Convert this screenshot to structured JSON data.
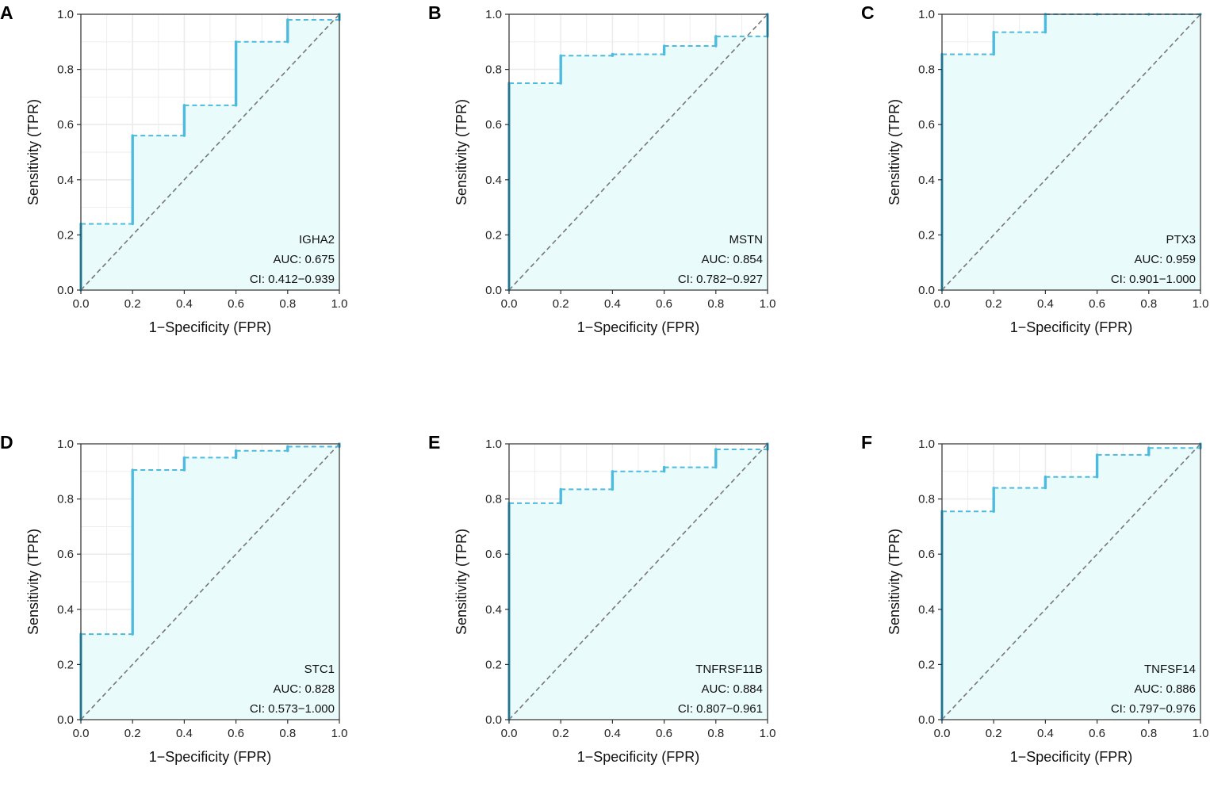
{
  "colors": {
    "roc": "#4dbbdf",
    "fill": "#eafbfb",
    "diag": "#777777",
    "grid": "#ebebeb"
  },
  "chart_data": [
    {
      "letter": "A",
      "type": "line",
      "xlabel": "1−Specificity (FPR)",
      "ylabel": "Sensitivity (TPR)",
      "xlim": [
        0,
        1
      ],
      "ylim": [
        0,
        1
      ],
      "xticks": [
        "0.0",
        "0.2",
        "0.4",
        "0.6",
        "0.8",
        "1.0"
      ],
      "yticks": [
        "0.0",
        "0.2",
        "0.4",
        "0.6",
        "0.8",
        "1.0"
      ],
      "gene": "IGHA2",
      "auc_text": "AUC: 0.675",
      "ci_text": "CI: 0.412−0.939",
      "steps": [
        [
          0,
          0.0,
          0.24
        ],
        [
          0.2,
          0.24,
          0.56
        ],
        [
          0.4,
          0.56,
          0.67
        ],
        [
          0.6,
          0.67,
          0.9
        ],
        [
          0.8,
          0.9,
          0.98
        ],
        [
          1.0,
          0.98,
          1.0
        ]
      ]
    },
    {
      "letter": "B",
      "type": "line",
      "xlabel": "1−Specificity (FPR)",
      "ylabel": "Sensitivity (TPR)",
      "xlim": [
        0,
        1
      ],
      "ylim": [
        0,
        1
      ],
      "xticks": [
        "0.0",
        "0.2",
        "0.4",
        "0.6",
        "0.8",
        "1.0"
      ],
      "yticks": [
        "0.0",
        "0.2",
        "0.4",
        "0.6",
        "0.8",
        "1.0"
      ],
      "gene": "MSTN",
      "auc_text": "AUC: 0.854",
      "ci_text": "CI: 0.782−0.927",
      "steps": [
        [
          0,
          0.0,
          0.75
        ],
        [
          0.2,
          0.75,
          0.85
        ],
        [
          0.4,
          0.85,
          0.855
        ],
        [
          0.6,
          0.855,
          0.885
        ],
        [
          0.8,
          0.885,
          0.92
        ],
        [
          1.0,
          0.92,
          1.0
        ]
      ]
    },
    {
      "letter": "C",
      "type": "line",
      "xlabel": "1−Specificity (FPR)",
      "ylabel": "Sensitivity (TPR)",
      "xlim": [
        0,
        1
      ],
      "ylim": [
        0,
        1
      ],
      "xticks": [
        "0.0",
        "0.2",
        "0.4",
        "0.6",
        "0.8",
        "1.0"
      ],
      "yticks": [
        "0.0",
        "0.2",
        "0.4",
        "0.6",
        "0.8",
        "1.0"
      ],
      "gene": "PTX3",
      "auc_text": "AUC: 0.959",
      "ci_text": "CI: 0.901−1.000",
      "steps": [
        [
          0,
          0.0,
          0.855
        ],
        [
          0.2,
          0.855,
          0.935
        ],
        [
          0.4,
          0.935,
          1.0
        ],
        [
          0.6,
          1.0,
          1.0
        ],
        [
          0.8,
          1.0,
          1.0
        ],
        [
          1.0,
          1.0,
          1.0
        ]
      ]
    },
    {
      "letter": "D",
      "type": "line",
      "xlabel": "1−Specificity (FPR)",
      "ylabel": "Sensitivity (TPR)",
      "xlim": [
        0,
        1
      ],
      "ylim": [
        0,
        1
      ],
      "xticks": [
        "0.0",
        "0.2",
        "0.4",
        "0.6",
        "0.8",
        "1.0"
      ],
      "yticks": [
        "0.0",
        "0.2",
        "0.4",
        "0.6",
        "0.8",
        "1.0"
      ],
      "gene": "STC1",
      "auc_text": "AUC: 0.828",
      "ci_text": "CI: 0.573−1.000",
      "steps": [
        [
          0,
          0.0,
          0.31
        ],
        [
          0.2,
          0.31,
          0.905
        ],
        [
          0.4,
          0.905,
          0.95
        ],
        [
          0.6,
          0.95,
          0.975
        ],
        [
          0.8,
          0.975,
          0.99
        ],
        [
          1.0,
          0.99,
          1.0
        ]
      ]
    },
    {
      "letter": "E",
      "type": "line",
      "xlabel": "1−Specificity (FPR)",
      "ylabel": "Sensitivity (TPR)",
      "xlim": [
        0,
        1
      ],
      "ylim": [
        0,
        1
      ],
      "xticks": [
        "0.0",
        "0.2",
        "0.4",
        "0.6",
        "0.8",
        "1.0"
      ],
      "yticks": [
        "0.0",
        "0.2",
        "0.4",
        "0.6",
        "0.8",
        "1.0"
      ],
      "gene": "TNFRSF11B",
      "auc_text": "AUC: 0.884",
      "ci_text": "CI: 0.807−0.961",
      "steps": [
        [
          0,
          0.0,
          0.785
        ],
        [
          0.2,
          0.785,
          0.835
        ],
        [
          0.4,
          0.835,
          0.9
        ],
        [
          0.6,
          0.9,
          0.915
        ],
        [
          0.8,
          0.915,
          0.98
        ],
        [
          1.0,
          0.98,
          1.0
        ]
      ]
    },
    {
      "letter": "F",
      "type": "line",
      "xlabel": "1−Specificity (FPR)",
      "ylabel": "Sensitivity (TPR)",
      "xlim": [
        0,
        1
      ],
      "ylim": [
        0,
        1
      ],
      "xticks": [
        "0.0",
        "0.2",
        "0.4",
        "0.6",
        "0.8",
        "1.0"
      ],
      "yticks": [
        "0.0",
        "0.2",
        "0.4",
        "0.6",
        "0.8",
        "1.0"
      ],
      "gene": "TNFSF14",
      "auc_text": "AUC: 0.886",
      "ci_text": "CI: 0.797−0.976",
      "steps": [
        [
          0,
          0.0,
          0.755
        ],
        [
          0.2,
          0.755,
          0.84
        ],
        [
          0.4,
          0.84,
          0.88
        ],
        [
          0.6,
          0.88,
          0.96
        ],
        [
          0.8,
          0.96,
          0.985
        ],
        [
          1.0,
          0.985,
          1.0
        ]
      ]
    }
  ]
}
